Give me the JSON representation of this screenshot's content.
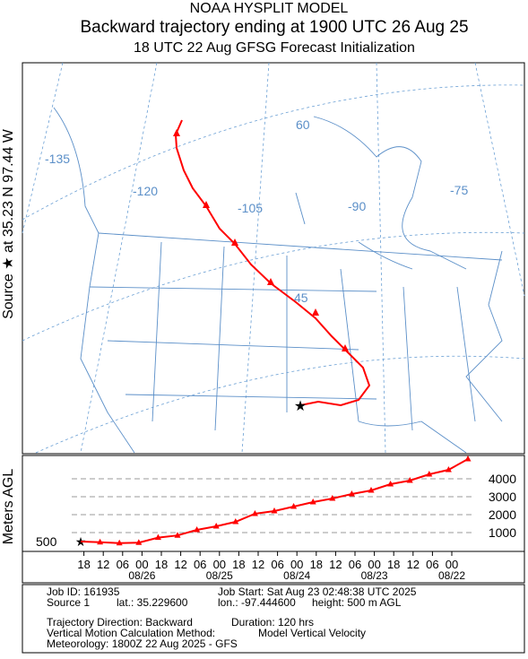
{
  "header": {
    "model": "NOAA HYSPLIT MODEL",
    "title": "Backward trajectory ending at 1900 UTC 26 Aug 25",
    "subtitle": "18 UTC 22 Aug    GFSG  Forecast Initialization"
  },
  "side_label": "Source ★ at   35.23 N   97.44 W",
  "map_labels": [
    -135,
    -120,
    -105,
    -90,
    -75,
    60,
    45
  ],
  "chart_data": {
    "type": "line",
    "y_label": "Meters AGL",
    "source_height": 500,
    "xlim": [
      0,
      120
    ],
    "ylim": [
      0,
      5300
    ],
    "x": [
      0,
      6,
      12,
      18,
      24,
      30,
      36,
      42,
      48,
      54,
      60,
      66,
      72,
      78,
      84,
      90,
      96,
      102,
      108,
      114,
      120
    ],
    "series": [
      {
        "name": "Source 1",
        "color": "#ff0000",
        "values": [
          500,
          460,
          410,
          440,
          720,
          840,
          1150,
          1350,
          1600,
          2050,
          2200,
          2450,
          2700,
          2900,
          3150,
          3350,
          3700,
          3900,
          4250,
          4500,
          5100
        ]
      }
    ],
    "yticks": [
      1000,
      2000,
      3000,
      4000
    ],
    "xticks": [
      {
        "value": 1,
        "label": "18"
      },
      {
        "value": 7,
        "label": "12"
      },
      {
        "value": 13,
        "label": "06"
      },
      {
        "value": 19,
        "label": "00"
      },
      {
        "value": 25,
        "label": "18"
      },
      {
        "value": 31,
        "label": "12"
      },
      {
        "value": 37,
        "label": "06"
      },
      {
        "value": 43,
        "label": "00"
      },
      {
        "value": 49,
        "label": "18"
      },
      {
        "value": 55,
        "label": "12"
      },
      {
        "value": 61,
        "label": "06"
      },
      {
        "value": 67,
        "label": "00"
      },
      {
        "value": 73,
        "label": "18"
      },
      {
        "value": 79,
        "label": "12"
      },
      {
        "value": 85,
        "label": "06"
      },
      {
        "value": 91,
        "label": "00"
      },
      {
        "value": 97,
        "label": "18"
      },
      {
        "value": 103,
        "label": "12"
      },
      {
        "value": 109,
        "label": "06"
      },
      {
        "value": 115,
        "label": "00"
      }
    ],
    "date_ticks": [
      {
        "value": 19,
        "label": "08/26"
      },
      {
        "value": 43,
        "label": "08/25"
      },
      {
        "value": 67,
        "label": "08/24"
      },
      {
        "value": 91,
        "label": "08/23"
      },
      {
        "value": 115,
        "label": "08/22"
      }
    ]
  },
  "info": {
    "job_id": "Job ID: 161935",
    "job_start": "Job Start: Sat Aug 23 02:48:38 UTC 2025",
    "source": "Source 1",
    "lat": "lat.: 35.229600",
    "lon": "lon.: -97.444600",
    "height": "height: 500 m AGL",
    "direction": "Trajectory Direction: Backward",
    "duration": "Duration: 120 hrs",
    "method": "Vertical Motion Calculation Method:",
    "method_value": "Model Vertical Velocity",
    "meteorology": "Meteorology: 1800Z 22 Aug 2025 - GFS"
  }
}
